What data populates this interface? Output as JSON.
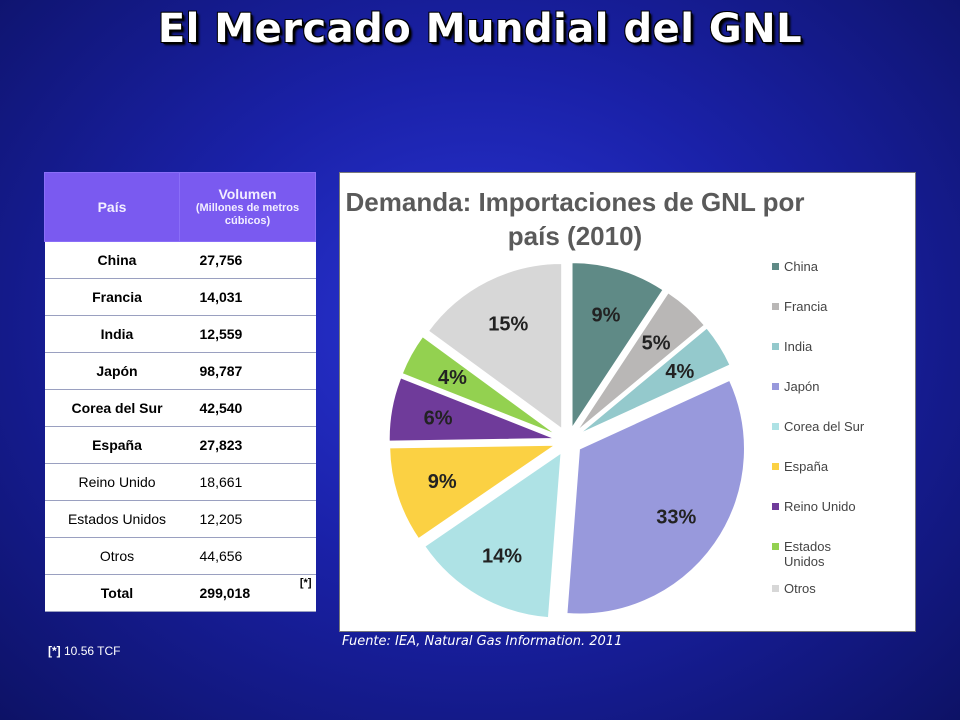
{
  "title": "El Mercado Mundial del GNL",
  "table": {
    "header_country": "País",
    "header_volume": "Volumen",
    "header_volume_sub": "(Millones de metros cúbicos)",
    "rows": [
      {
        "country": "China",
        "volume": "27,756"
      },
      {
        "country": "Francia",
        "volume": "14,031"
      },
      {
        "country": "India",
        "volume": "12,559"
      },
      {
        "country": "Japón",
        "volume": "98,787"
      },
      {
        "country": "Corea del Sur",
        "volume": "42,540"
      },
      {
        "country": "España",
        "volume": "27,823"
      },
      {
        "country": "Reino Unido",
        "volume": "18,661"
      },
      {
        "country": "Estados Unidos",
        "volume": "12,205"
      },
      {
        "country": "Otros",
        "volume": "44,656"
      }
    ],
    "total_label": "Total",
    "total_value": "299,018",
    "total_mark": "[*]"
  },
  "footnote": {
    "mark": "[*]",
    "text": " 10.56 TCF"
  },
  "source": "Fuente: IEA, Natural Gas Information. 2011",
  "chart_data": {
    "type": "pie",
    "title": "Demanda: Importaciones de GNL por país (2010)",
    "categories": [
      "China",
      "Francia",
      "India",
      "Japón",
      "Corea del Sur",
      "España",
      "Reino Unido",
      "Estados Unidos",
      "Otros"
    ],
    "values": [
      27756,
      14031,
      12559,
      98787,
      42540,
      27823,
      18661,
      12205,
      44656
    ],
    "labels": [
      "9%",
      "5%",
      "4%",
      "33%",
      "14%",
      "9%",
      "6%",
      "4%",
      "15%"
    ],
    "colors": [
      "#5f8a86",
      "#b9b7b6",
      "#94c9cc",
      "#9899dc",
      "#aee2e5",
      "#fbd143",
      "#6f3b9a",
      "#93d150",
      "#d7d7d7"
    ],
    "legend_position": "right",
    "exploded": true
  }
}
